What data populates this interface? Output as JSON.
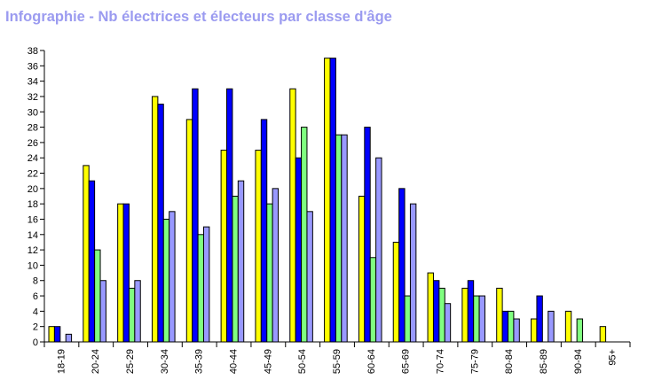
{
  "chart_data": {
    "type": "bar",
    "title": "Infographie - Nb électrices et électeurs par classe d'âge",
    "xlabel": "",
    "ylabel": "",
    "ylim": [
      0,
      38
    ],
    "yticks": [
      0,
      2,
      4,
      6,
      8,
      10,
      12,
      14,
      16,
      18,
      20,
      22,
      24,
      26,
      28,
      30,
      32,
      34,
      36,
      38
    ],
    "grid": false,
    "legend": "none",
    "categories": [
      "18-19",
      "20-24",
      "25-29",
      "30-34",
      "35-39",
      "40-44",
      "45-49",
      "50-54",
      "55-59",
      "60-64",
      "65-69",
      "70-74",
      "75-79",
      "80-84",
      "85-89",
      "90-94",
      "95+"
    ],
    "series": [
      {
        "color": "#ffff00",
        "values": [
          2,
          23,
          18,
          32,
          29,
          25,
          25,
          33,
          37,
          19,
          13,
          9,
          7,
          7,
          3,
          4,
          2
        ]
      },
      {
        "color": "#0000ff",
        "values": [
          2,
          21,
          18,
          31,
          33,
          33,
          29,
          24,
          37,
          28,
          20,
          8,
          8,
          4,
          6,
          0,
          0
        ]
      },
      {
        "color": "#80ff80",
        "values": [
          0,
          12,
          7,
          16,
          14,
          19,
          18,
          28,
          27,
          11,
          6,
          7,
          6,
          4,
          0,
          3,
          0
        ]
      },
      {
        "color": "#9999ff",
        "values": [
          1,
          8,
          8,
          17,
          15,
          21,
          20,
          17,
          27,
          24,
          18,
          5,
          6,
          3,
          4,
          0,
          0
        ]
      }
    ]
  }
}
